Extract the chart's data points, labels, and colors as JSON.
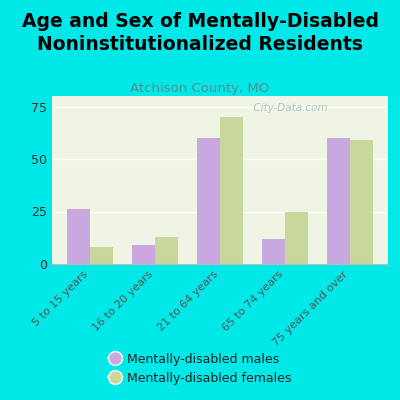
{
  "title": "Age and Sex of Mentally-Disabled\nNoninstitutionalized Residents",
  "subtitle": "Atchison County, MO",
  "categories": [
    "5 to 15 years",
    "16 to 20 years",
    "21 to 64 years",
    "65 to 74 years",
    "75 years and over"
  ],
  "males": [
    26,
    9,
    60,
    12,
    60
  ],
  "females": [
    8,
    13,
    70,
    25,
    59
  ],
  "male_color": "#c9a8e0",
  "female_color": "#c8d89a",
  "background_color": "#00e8e8",
  "plot_bg_color": "#f0f4e4",
  "ylim": [
    0,
    80
  ],
  "yticks": [
    0,
    25,
    50,
    75
  ],
  "bar_width": 0.35,
  "title_fontsize": 13.5,
  "subtitle_fontsize": 9.5,
  "subtitle_color": "#5a8a8a",
  "legend_labels": [
    "Mentally-disabled males",
    "Mentally-disabled females"
  ],
  "watermark": "  City-Data.com",
  "watermark_color": "#aabfbf"
}
